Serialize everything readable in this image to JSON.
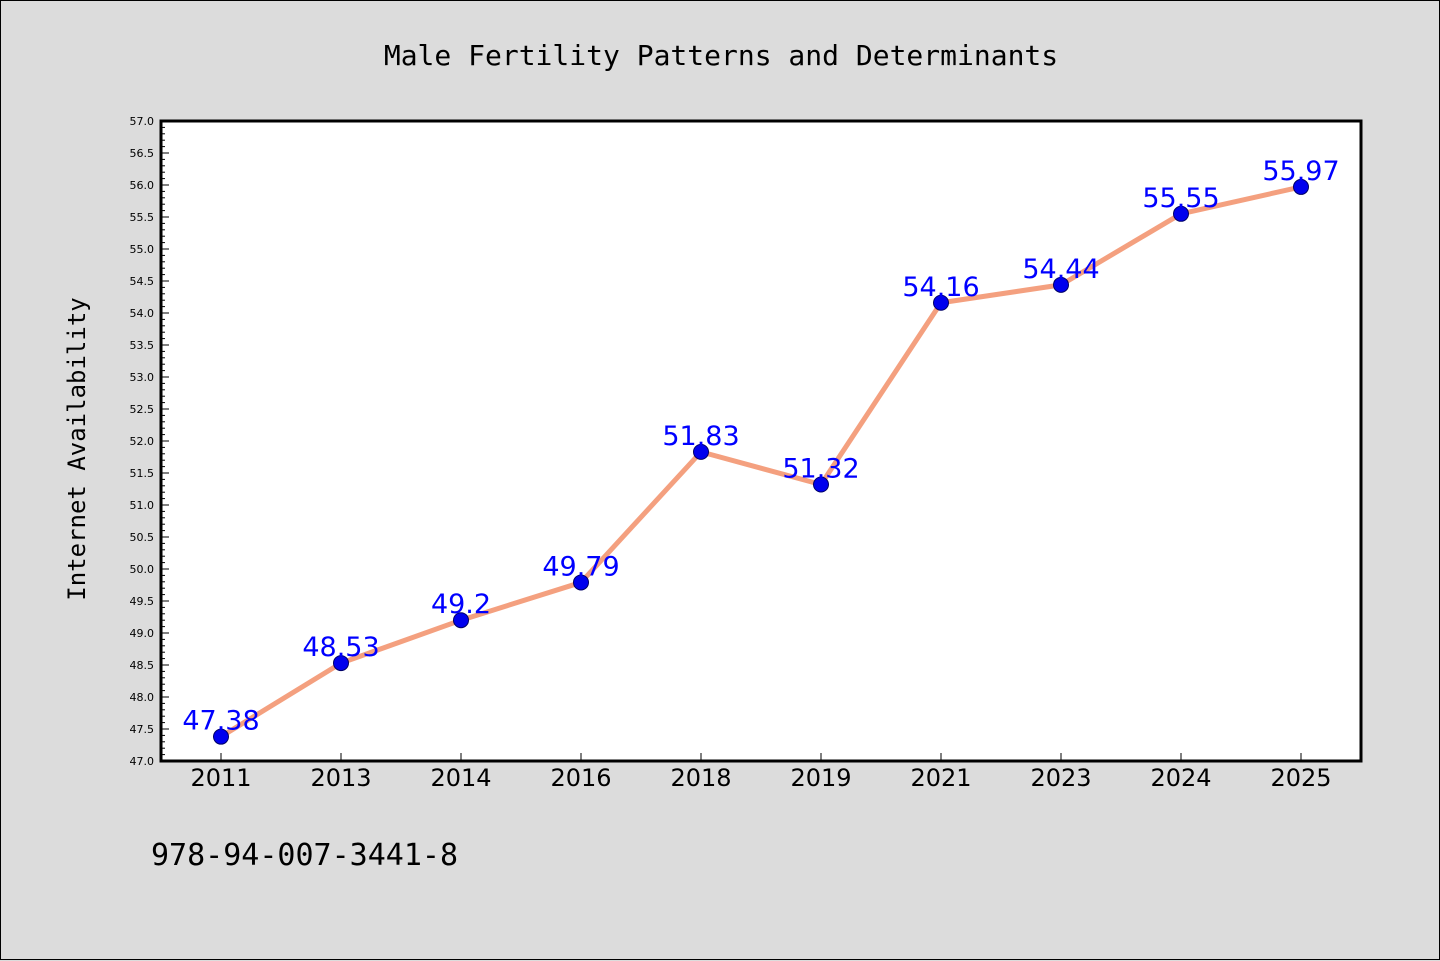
{
  "chart_data": {
    "type": "line",
    "title": "Male Fertility Patterns and Determinants",
    "xlabel": "",
    "ylabel": "Internet Availability",
    "categories": [
      "2011",
      "2013",
      "2014",
      "2016",
      "2018",
      "2019",
      "2021",
      "2023",
      "2024",
      "2025"
    ],
    "series": [
      {
        "values": [
          47.38,
          48.53,
          49.2,
          49.79,
          51.83,
          51.32,
          54.16,
          54.44,
          55.55,
          55.97
        ],
        "data_labels": [
          "47.38",
          "48.53",
          "49.2",
          "49.79",
          "51.83",
          "51.32",
          "54.16",
          "54.44",
          "55.55",
          "55.97"
        ]
      }
    ],
    "ylim": [
      47.0,
      57.0
    ],
    "yticks": [
      "47.0",
      "47.5",
      "48.0",
      "48.5",
      "49.0",
      "49.5",
      "50.0",
      "50.5",
      "51.0",
      "51.5",
      "52.0",
      "52.5",
      "53.0",
      "53.5",
      "54.0",
      "54.5",
      "55.0",
      "55.5",
      "56.0",
      "56.5",
      "57.0"
    ],
    "grid": false,
    "legend": "none",
    "colors": {
      "line": "#f4a07f",
      "marker": "#0000ee",
      "marker_edge": "#000066",
      "label": "#0000ff",
      "background": "#dcdcdc",
      "plot_background": "#ffffff"
    }
  },
  "footer": {
    "isbn": "978-94-007-3441-8"
  }
}
